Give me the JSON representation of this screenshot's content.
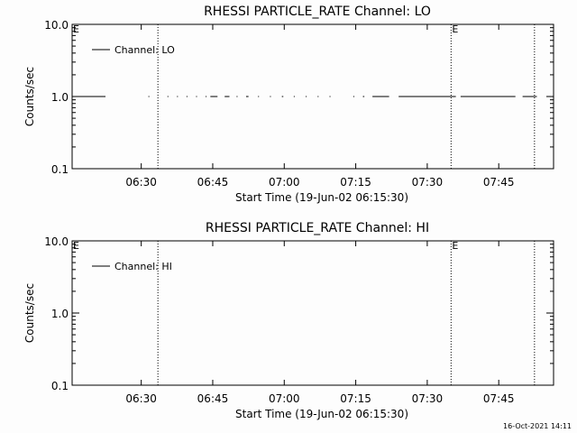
{
  "timestamp": "16-Oct-2021 14:11",
  "chart_data": [
    {
      "type": "line",
      "title": "RHESSI PARTICLE_RATE Channel: LO",
      "xlabel": "Start Time (19-Jun-02 06:15:30)",
      "ylabel": "Counts/sec",
      "xlim_minutes": [
        0,
        101
      ],
      "ylim": [
        0.1,
        10.0
      ],
      "yscale": "log",
      "x_ticks": [
        {
          "label": "06:30",
          "minutes": 14.5
        },
        {
          "label": "06:45",
          "minutes": 29.5
        },
        {
          "label": "07:00",
          "minutes": 44.5
        },
        {
          "label": "07:15",
          "minutes": 59.5
        },
        {
          "label": "07:30",
          "minutes": 74.5
        },
        {
          "label": "07:45",
          "minutes": 89.5
        }
      ],
      "y_ticks": [
        {
          "label": "10.0",
          "value": 10.0
        },
        {
          "label": "1.0",
          "value": 1.0
        },
        {
          "label": "0.1",
          "value": 0.1
        }
      ],
      "series": [
        {
          "name": "Channel: LO",
          "y": 1.0,
          "segments": [
            [
              0,
              7.0
            ],
            [
              16.0,
              16.2
            ],
            [
              20.0,
              20.2
            ],
            [
              22.0,
              22.2
            ],
            [
              24.0,
              24.2
            ],
            [
              26.0,
              26.2
            ],
            [
              28.0,
              28.2
            ],
            [
              29.0,
              30.5
            ],
            [
              32.0,
              33.0
            ],
            [
              34.5,
              34.7
            ],
            [
              36.5,
              37.0
            ],
            [
              39.0,
              39.2
            ],
            [
              41.5,
              41.7
            ],
            [
              44.0,
              44.3
            ],
            [
              46.5,
              46.7
            ],
            [
              49.0,
              49.2
            ],
            [
              51.5,
              51.7
            ],
            [
              54.0,
              54.2
            ],
            [
              59.0,
              59.2
            ],
            [
              61.0,
              61.3
            ],
            [
              63.0,
              66.5
            ],
            [
              68.5,
              80.5
            ],
            [
              81.5,
              93.0
            ],
            [
              94.5,
              97.5
            ]
          ]
        }
      ],
      "vertical_markers": [
        {
          "minutes": 18.0,
          "label": ""
        },
        {
          "minutes": 79.5,
          "label": "E"
        },
        {
          "minutes": 97.0,
          "label": ""
        }
      ],
      "corner_label": "E",
      "legend_position": "top-left"
    },
    {
      "type": "line",
      "title": "RHESSI PARTICLE_RATE Channel: HI",
      "xlabel": "Start Time (19-Jun-02 06:15:30)",
      "ylabel": "Counts/sec",
      "xlim_minutes": [
        0,
        101
      ],
      "ylim": [
        0.1,
        10.0
      ],
      "yscale": "log",
      "x_ticks": [
        {
          "label": "06:30",
          "minutes": 14.5
        },
        {
          "label": "06:45",
          "minutes": 29.5
        },
        {
          "label": "07:00",
          "minutes": 44.5
        },
        {
          "label": "07:15",
          "minutes": 59.5
        },
        {
          "label": "07:30",
          "minutes": 74.5
        },
        {
          "label": "07:45",
          "minutes": 89.5
        }
      ],
      "y_ticks": [
        {
          "label": "10.0",
          "value": 10.0
        },
        {
          "label": "1.0",
          "value": 1.0
        },
        {
          "label": "0.1",
          "value": 0.1
        }
      ],
      "series": [
        {
          "name": "Channel: HI",
          "y": 1.0,
          "segments": []
        }
      ],
      "vertical_markers": [
        {
          "minutes": 18.0,
          "label": ""
        },
        {
          "minutes": 79.5,
          "label": "E"
        },
        {
          "minutes": 97.0,
          "label": ""
        }
      ],
      "corner_label": "E",
      "legend_position": "top-left"
    }
  ]
}
